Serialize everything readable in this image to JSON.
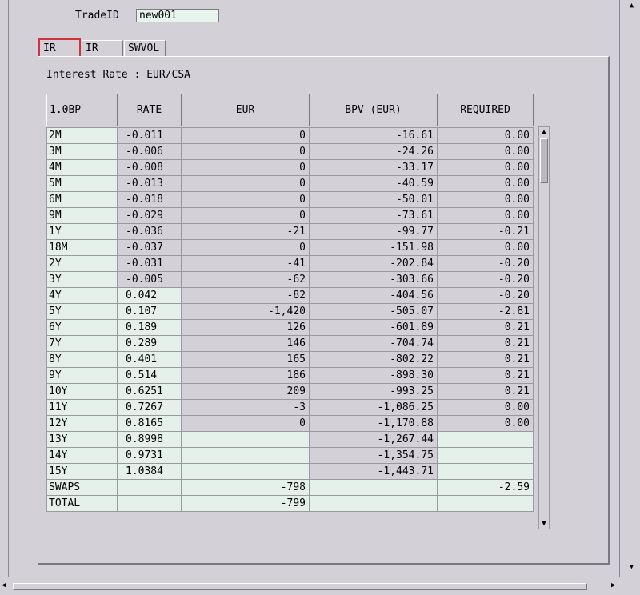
{
  "trade": {
    "label": "TradeID",
    "value": "new001"
  },
  "tabs": [
    {
      "label": "IR",
      "active": true
    },
    {
      "label": "IR",
      "active": false
    },
    {
      "label": "SWVOL",
      "active": false
    }
  ],
  "section_title": "Interest Rate : EUR/CSA",
  "table": {
    "headers": [
      "1.0BP",
      "RATE",
      "EUR",
      "BPV (EUR)",
      "REQUIRED"
    ],
    "rows": [
      [
        "2M",
        "-0.011",
        "0",
        "-16.61",
        "0.00"
      ],
      [
        "3M",
        "-0.006",
        "0",
        "-24.26",
        "0.00"
      ],
      [
        "4M",
        "-0.008",
        "0",
        "-33.17",
        "0.00"
      ],
      [
        "5M",
        "-0.013",
        "0",
        "-40.59",
        "0.00"
      ],
      [
        "6M",
        "-0.018",
        "0",
        "-50.01",
        "0.00"
      ],
      [
        "9M",
        "-0.029",
        "0",
        "-73.61",
        "0.00"
      ],
      [
        "1Y",
        "-0.036",
        "-21",
        "-99.77",
        "-0.21"
      ],
      [
        "18M",
        "-0.037",
        "0",
        "-151.98",
        "0.00"
      ],
      [
        "2Y",
        "-0.031",
        "-41",
        "-202.84",
        "-0.20"
      ],
      [
        "3Y",
        "-0.005",
        "-62",
        "-303.66",
        "-0.20"
      ],
      [
        "4Y",
        "0.042",
        "-82",
        "-404.56",
        "-0.20"
      ],
      [
        "5Y",
        "0.107",
        "-1,420",
        "-505.07",
        "-2.81"
      ],
      [
        "6Y",
        "0.189",
        "126",
        "-601.89",
        "0.21"
      ],
      [
        "7Y",
        "0.289",
        "146",
        "-704.74",
        "0.21"
      ],
      [
        "8Y",
        "0.401",
        "165",
        "-802.22",
        "0.21"
      ],
      [
        "9Y",
        "0.514",
        "186",
        "-898.30",
        "0.21"
      ],
      [
        "10Y",
        "0.6251",
        "209",
        "-993.25",
        "0.21"
      ],
      [
        "11Y",
        "0.7267",
        "-3",
        "-1,086.25",
        "0.00"
      ],
      [
        "12Y",
        "0.8165",
        "0",
        "-1,170.88",
        "0.00"
      ],
      [
        "13Y",
        "0.8998",
        "",
        "-1,267.44",
        ""
      ],
      [
        "14Y",
        "0.9731",
        "",
        "-1,354.75",
        ""
      ],
      [
        "15Y",
        "1.0384",
        "",
        "-1,443.71",
        ""
      ]
    ],
    "summary": [
      [
        "SWAPS",
        "",
        "-798",
        "",
        "-2.59"
      ],
      [
        "TOTAL",
        "",
        "-799",
        "",
        ""
      ]
    ]
  },
  "icons": {
    "scroll_up": "▲",
    "scroll_down": "▼",
    "scroll_left": "◀",
    "scroll_right": "▶"
  },
  "colors": {
    "background": "#d4d0d8",
    "cell_light": "#e4f0ea",
    "active_tab_border": "#d23040"
  }
}
